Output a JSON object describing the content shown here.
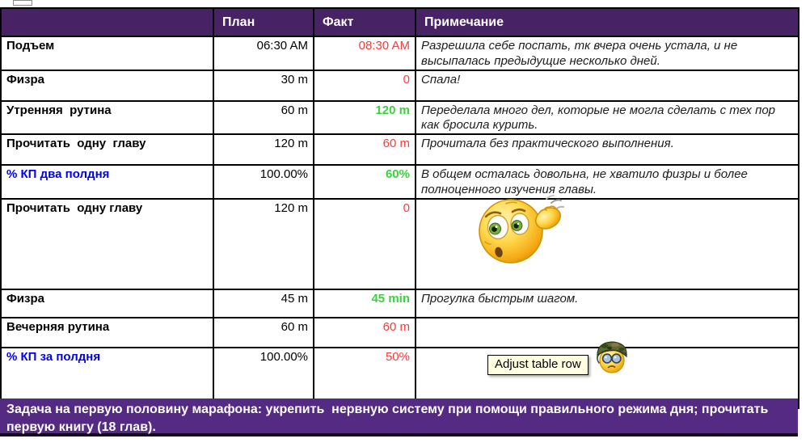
{
  "header": {
    "task": "",
    "plan": "План",
    "fact": "Факт",
    "note": "Примечание"
  },
  "rows": [
    {
      "task": "Подъем",
      "task_color": "black",
      "plan": "06:30 AM",
      "fact": "08:30 AM",
      "fact_color": "red",
      "fact_bold": false,
      "note": "Разрешила себе поспать, тк вчера очень устала, и не высыпалась предыдущие несколько дней."
    },
    {
      "task": "Физра",
      "task_color": "black",
      "plan": "30 m",
      "fact": "0",
      "fact_color": "red",
      "fact_bold": false,
      "note": "Спала!"
    },
    {
      "task": "Утренняя  рутина",
      "task_color": "black",
      "plan": "60 m",
      "fact": "120 m",
      "fact_color": "green",
      "fact_bold": true,
      "note": "Переделала много дел, которые не могла сделать с тех пор как бросила курить."
    },
    {
      "task": "Прочитать  одну  главу",
      "task_color": "black",
      "plan": "120 m",
      "fact": "60 m",
      "fact_color": "red",
      "fact_bold": false,
      "note": "Прочитала без практического выполнения."
    },
    {
      "task": "% КП два полдня",
      "task_color": "blue",
      "plan": "100.00%",
      "fact": "60%",
      "fact_color": "green",
      "fact_bold": true,
      "note": "В общем осталась довольна, не хватило физры и более полноценного изучения главы."
    },
    {
      "task": "Прочитать  одну главу",
      "task_color": "black",
      "plan": "120 m",
      "fact": "0",
      "fact_color": "red",
      "fact_bold": false,
      "note": ""
    },
    {
      "task": "Физра",
      "task_color": "black",
      "plan": "45 m",
      "fact": "45 min",
      "fact_color": "green",
      "fact_bold": true,
      "note": "Прогулка быстрым шагом."
    },
    {
      "task": "Вечерняя рутина",
      "task_color": "black",
      "plan": "60 m",
      "fact": "60 m",
      "fact_color": "red",
      "fact_bold": false,
      "note": ""
    },
    {
      "task": "% КП за полдня",
      "task_color": "blue",
      "plan": "100.00%",
      "fact": "50%",
      "fact_color": "red",
      "fact_bold": false,
      "note": ""
    }
  ],
  "footer": {
    "text": "Задача на первую половину марафона: укрепить  нервную систему при помощи правильного режима дня; прочитать первую книгу (18 глав)."
  },
  "tooltip": {
    "text": "Adjust table row"
  },
  "icons": {
    "confused_emoji": "confused-scratching-head-emoji",
    "soldier_emoji": "soldier-emoji-camo-helmet-goggles"
  },
  "colors": {
    "header_purple": "#472366",
    "footer_purple": "#552a82",
    "fact_red": "#fb3a3a",
    "fact_green": "#3ed13e",
    "task_blue": "#0000ee",
    "tooltip_bg": "#ffffe1"
  }
}
